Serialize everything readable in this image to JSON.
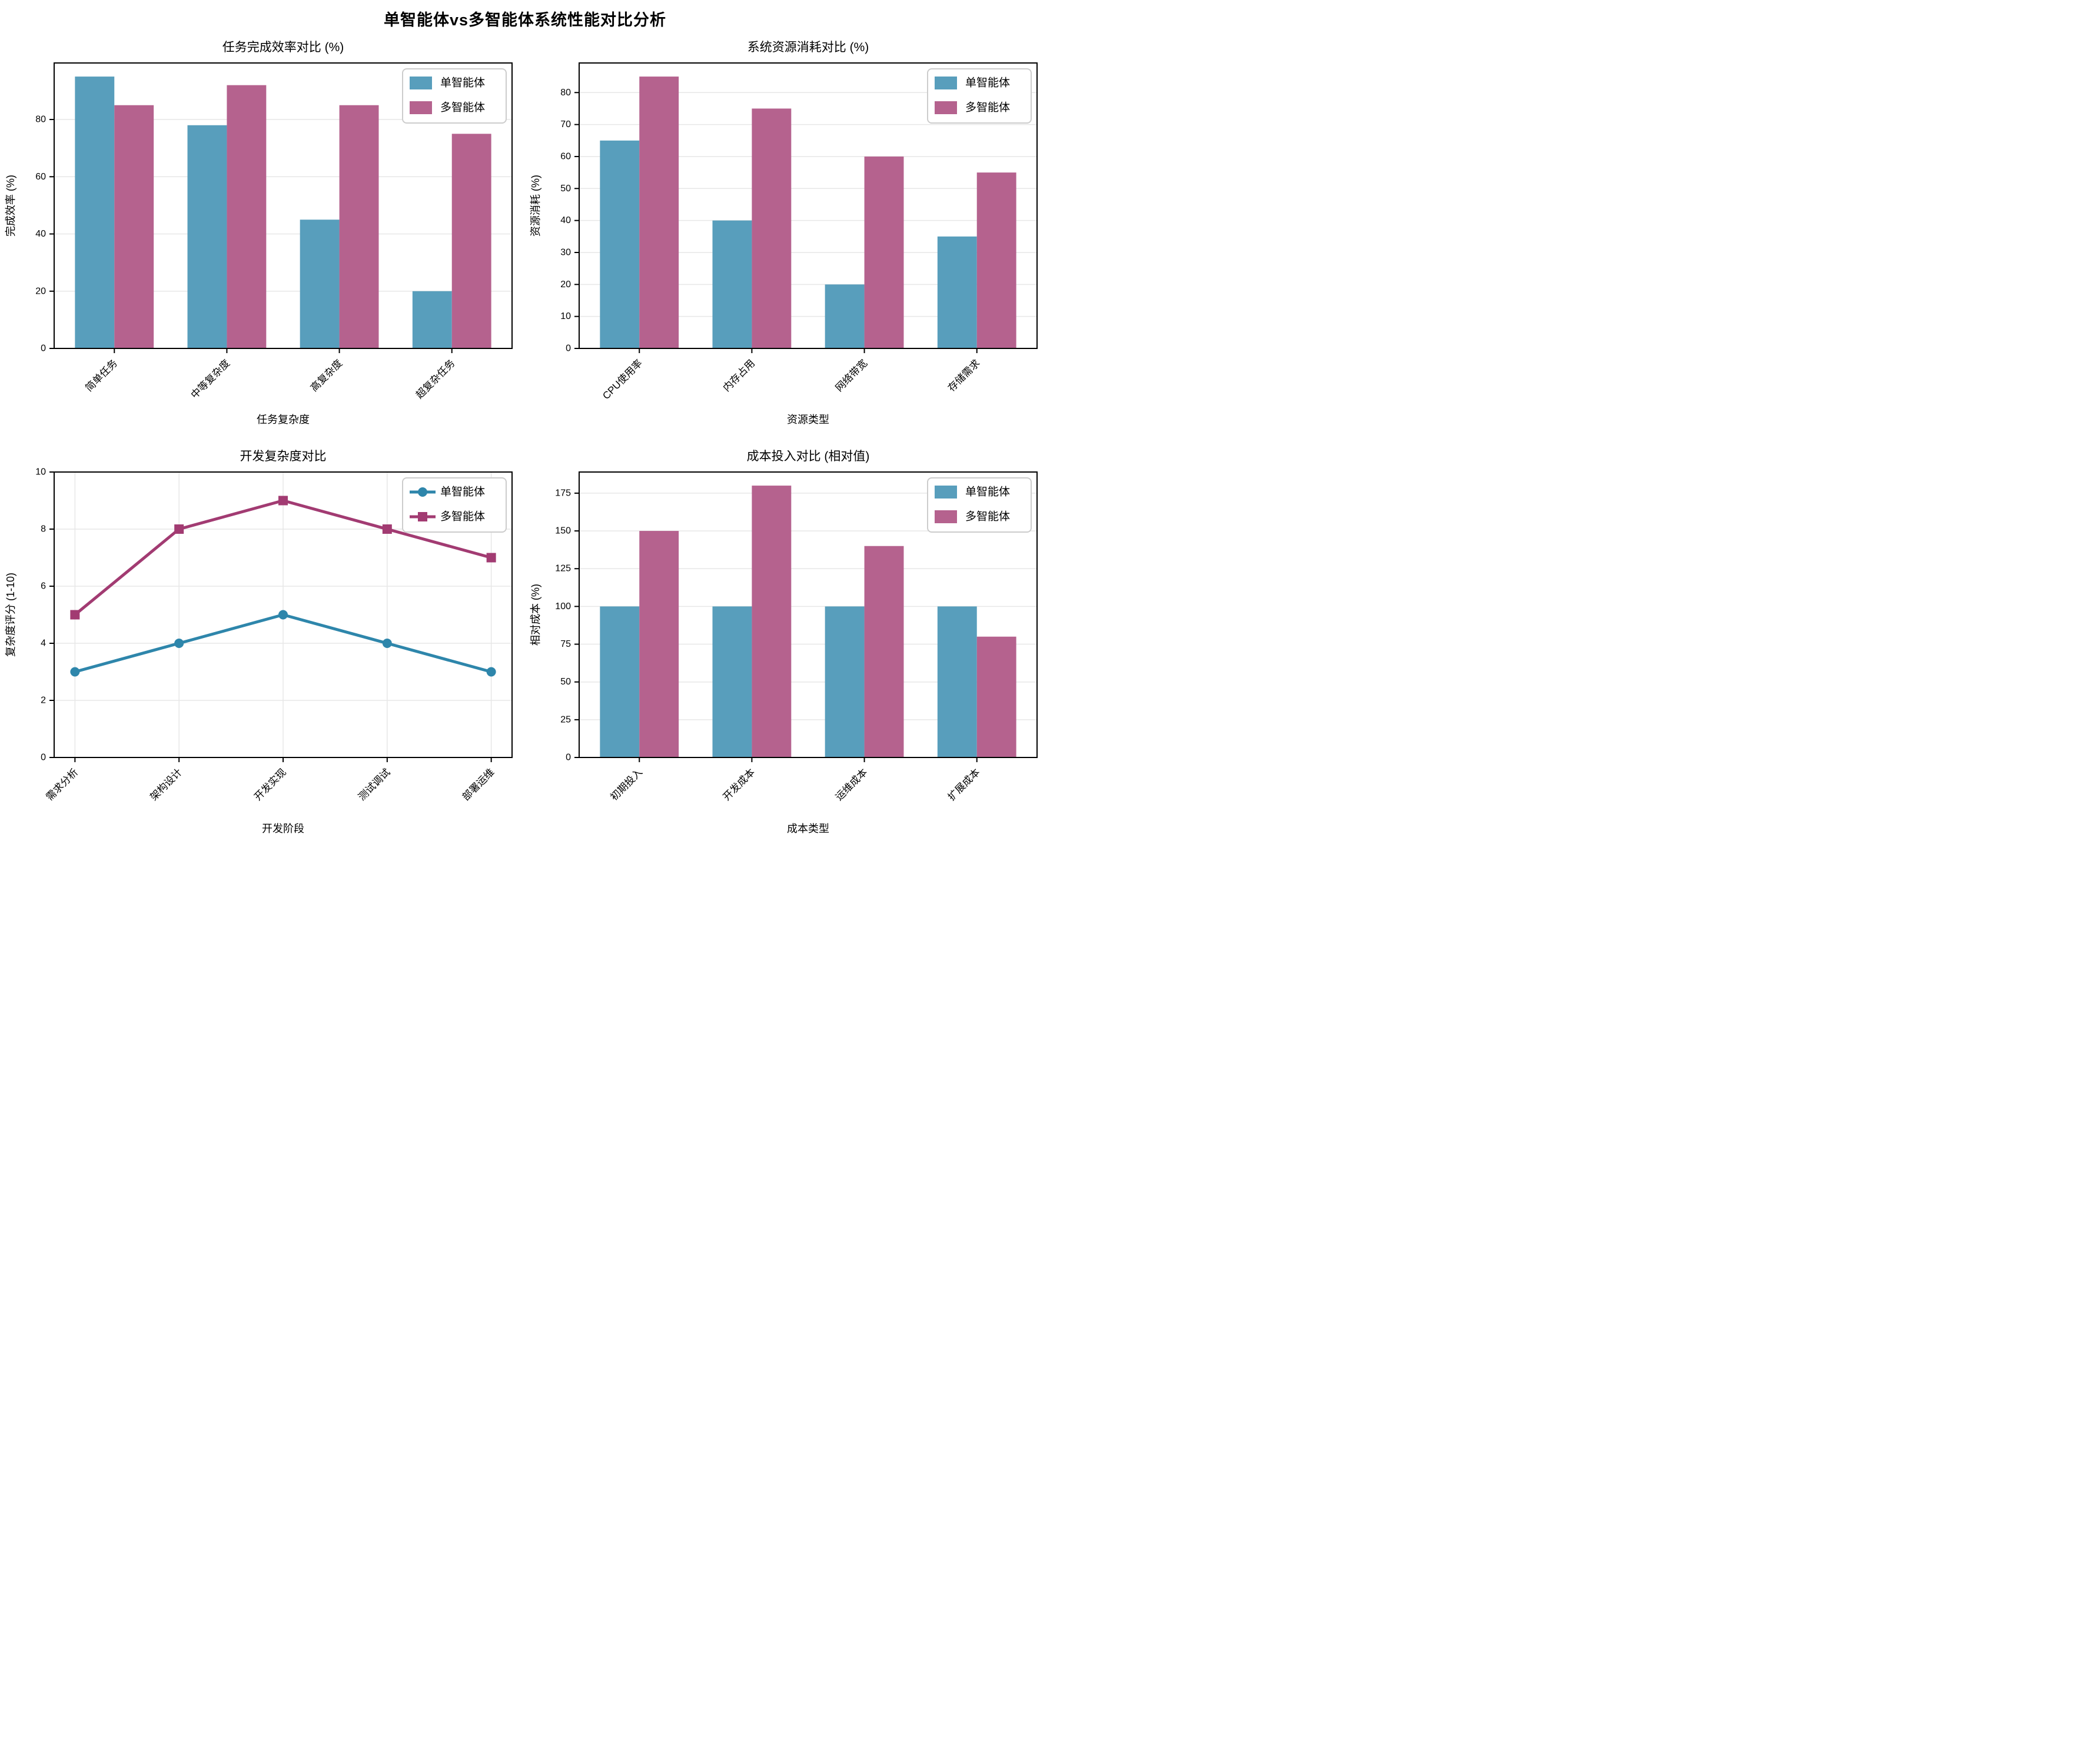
{
  "suptitle": "单智能体vs多智能体系统性能对比分析",
  "colors": {
    "single_line": "#2E86AB",
    "multi_line": "#A23B72",
    "single_bar": "#589EBC",
    "multi_bar": "#B5628E",
    "grid": "#e7e7e7",
    "spine": "#000000",
    "legend_border": "#cccccc",
    "legend_bg": "#ffffff",
    "text": "#000000"
  },
  "chart_data": [
    {
      "id": "task-efficiency",
      "type": "bar",
      "title": "任务完成效率对比 (%)",
      "xlabel": "任务复杂度",
      "ylabel": "完成效率 (%)",
      "categories": [
        "简单任务",
        "中等复杂度",
        "高复杂度",
        "超复杂任务"
      ],
      "series": [
        {
          "name": "单智能体",
          "color_key": "single",
          "values": [
            95,
            78,
            45,
            20
          ]
        },
        {
          "name": "多智能体",
          "color_key": "multi",
          "values": [
            85,
            92,
            85,
            75
          ]
        }
      ],
      "yticks": [
        0,
        20,
        40,
        60,
        80
      ],
      "ylim": [
        0,
        99.75
      ],
      "grid": "horizontal",
      "legend_position": "upper-right",
      "legend_marker": "rect"
    },
    {
      "id": "resource-consumption",
      "type": "bar",
      "title": "系统资源消耗对比 (%)",
      "xlabel": "资源类型",
      "ylabel": "资源消耗 (%)",
      "categories": [
        "CPU使用率",
        "内存占用",
        "网络带宽",
        "存储需求"
      ],
      "series": [
        {
          "name": "单智能体",
          "color_key": "single",
          "values": [
            65,
            40,
            20,
            35
          ]
        },
        {
          "name": "多智能体",
          "color_key": "multi",
          "values": [
            85,
            75,
            60,
            55
          ]
        }
      ],
      "yticks": [
        0,
        10,
        20,
        30,
        40,
        50,
        60,
        70,
        80
      ],
      "ylim": [
        0,
        89.25
      ],
      "grid": "horizontal",
      "legend_position": "upper-right",
      "legend_marker": "rect"
    },
    {
      "id": "development-complexity",
      "type": "line",
      "title": "开发复杂度对比",
      "xlabel": "开发阶段",
      "ylabel": "复杂度评分 (1-10)",
      "categories": [
        "需求分析",
        "架构设计",
        "开发实现",
        "测试调试",
        "部署运维"
      ],
      "series": [
        {
          "name": "单智能体",
          "color_key": "single",
          "marker": "circle",
          "values": [
            3,
            4,
            5,
            4,
            3
          ]
        },
        {
          "name": "多智能体",
          "color_key": "multi",
          "marker": "square",
          "values": [
            5,
            8,
            9,
            8,
            7
          ]
        }
      ],
      "yticks": [
        0,
        2,
        4,
        6,
        8,
        10
      ],
      "ylim": [
        0,
        10
      ],
      "grid": "both",
      "legend_position": "upper-right",
      "legend_marker": "line"
    },
    {
      "id": "cost-comparison",
      "type": "bar",
      "title": "成本投入对比 (相对值)",
      "xlabel": "成本类型",
      "ylabel": "相对成本 (%)",
      "categories": [
        "初期投入",
        "开发成本",
        "运维成本",
        "扩展成本"
      ],
      "series": [
        {
          "name": "单智能体",
          "color_key": "single",
          "values": [
            100,
            100,
            100,
            100
          ]
        },
        {
          "name": "多智能体",
          "color_key": "multi",
          "values": [
            150,
            180,
            140,
            80
          ]
        }
      ],
      "yticks": [
        0,
        25,
        50,
        75,
        100,
        125,
        150,
        175
      ],
      "ylim": [
        0,
        189
      ],
      "grid": "horizontal",
      "legend_position": "upper-right",
      "legend_marker": "rect"
    }
  ]
}
